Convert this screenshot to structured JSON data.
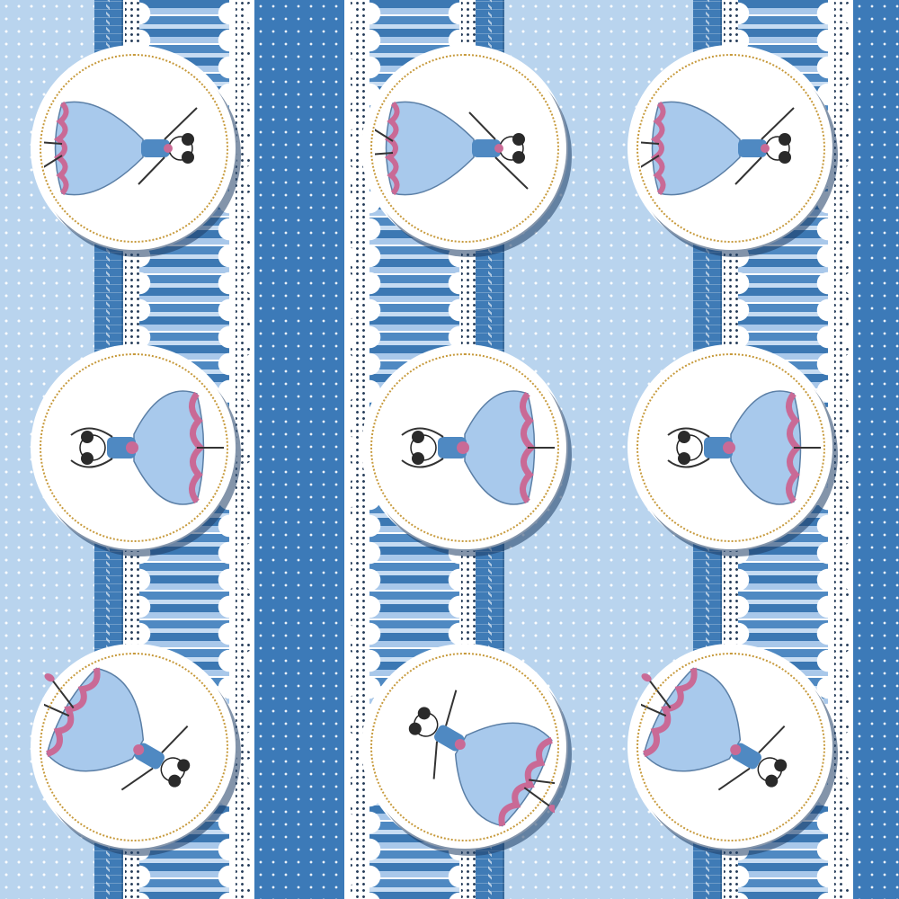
{
  "pattern": {
    "colors": {
      "light_blue": "#b9d4ee",
      "mid_blue": "#3c7ab8",
      "pink": "#c96a96",
      "skirt_blue": "#a8c9ec",
      "lace_white": "#ffffff",
      "stitch_gold": "#c79a3c"
    },
    "medallions": [
      {
        "pose": "reaching-left",
        "col": 1,
        "row": 1
      },
      {
        "pose": "arms-up-facing-left",
        "col": 1,
        "row": 2
      },
      {
        "pose": "twirl-left",
        "col": 1,
        "row": 3
      },
      {
        "pose": "reaching-right",
        "col": 2,
        "row": 1
      },
      {
        "pose": "arms-up-facing-right",
        "col": 2,
        "row": 2
      },
      {
        "pose": "twirl-right",
        "col": 2,
        "row": 3
      },
      {
        "pose": "reaching-left",
        "col": 3,
        "row": 1
      },
      {
        "pose": "arms-up-facing-left",
        "col": 3,
        "row": 2
      },
      {
        "pose": "twirl-left",
        "col": 3,
        "row": 3
      }
    ]
  }
}
